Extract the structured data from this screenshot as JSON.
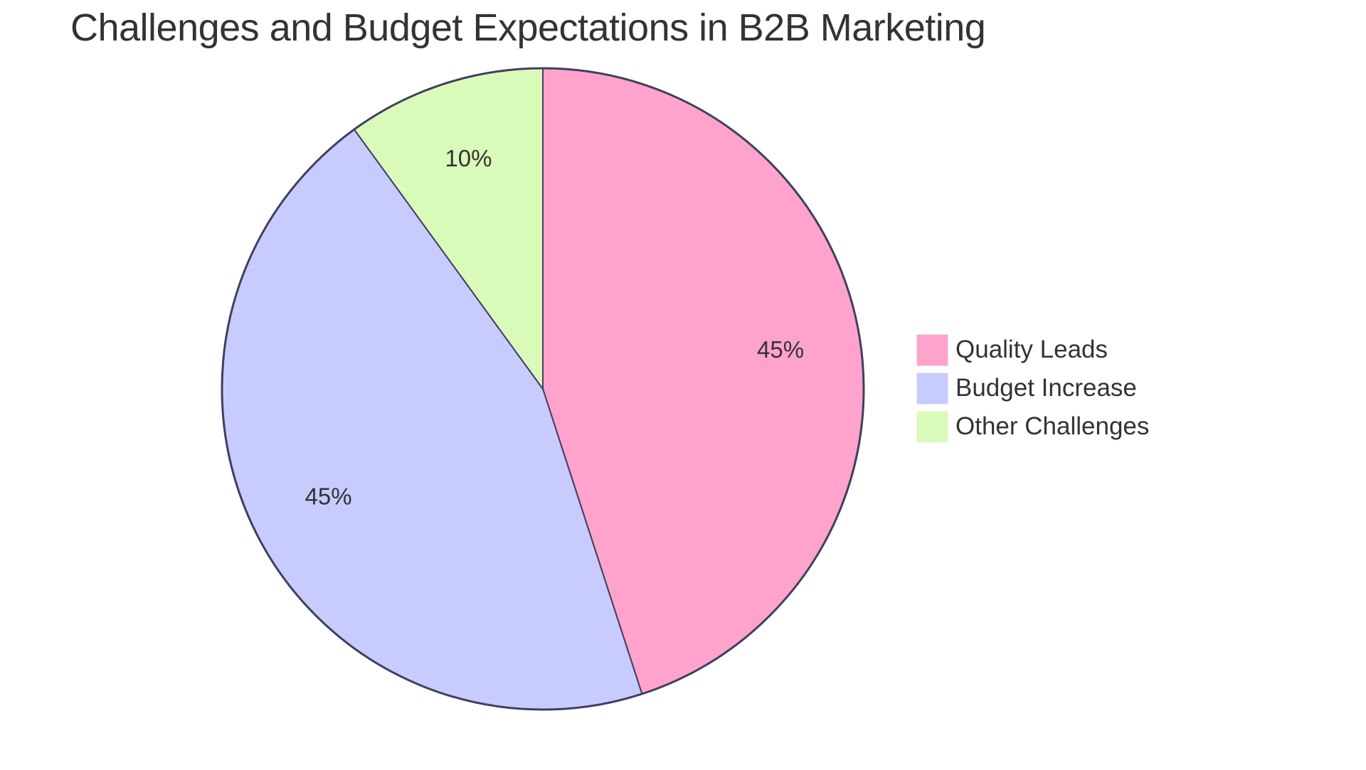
{
  "title": "Challenges and Budget Expectations in B2B Marketing",
  "legend": [
    {
      "label": "Quality Leads",
      "color": "#FFA3CD"
    },
    {
      "label": "Budget Increase",
      "color": "#C8CBFE"
    },
    {
      "label": "Other Challenges",
      "color": "#DAFAB9"
    }
  ],
  "slice_labels": [
    "45%",
    "45%",
    "10%"
  ],
  "chart_data": {
    "type": "pie",
    "title": "Challenges and Budget Expectations in B2B Marketing",
    "categories": [
      "Quality Leads",
      "Budget Increase",
      "Other Challenges"
    ],
    "values": [
      45,
      45,
      10
    ],
    "labels": [
      "45%",
      "45%",
      "10%"
    ],
    "colors": [
      "#FFA3CD",
      "#C8CBFE",
      "#DAFAB9"
    ],
    "stroke_color": "#3F3F5F",
    "legend_position": "right",
    "start_angle": "12 o'clock, clockwise"
  }
}
